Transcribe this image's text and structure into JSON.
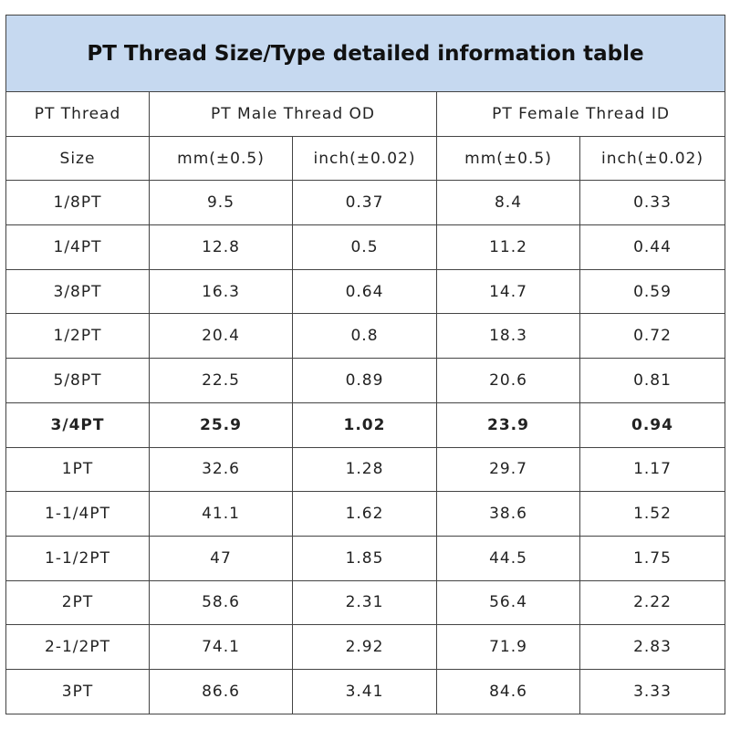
{
  "table": {
    "title": "PT Thread Size/Type detailed information table",
    "header": [
      [
        "PT Thread",
        "PT Male Thread OD",
        "PT Female Thread ID"
      ],
      [
        "Size",
        "mm(±0.5)",
        "inch(±0.02)",
        "mm(±0.5)",
        "inch(±0.02)"
      ]
    ],
    "rows": [
      [
        "1/8PT",
        "9.5",
        "0.37",
        "8.4",
        "0.33"
      ],
      [
        "1/4PT",
        "12.8",
        "0.5",
        "11.2",
        "0.44"
      ],
      [
        "3/8PT",
        "16.3",
        "0.64",
        "14.7",
        "0.59"
      ],
      [
        "1/2PT",
        "20.4",
        "0.8",
        "18.3",
        "0.72"
      ],
      [
        "5/8PT",
        "22.5",
        "0.89",
        "20.6",
        "0.81"
      ],
      [
        "3/4PT",
        "25.9",
        "1.02",
        "23.9",
        "0.94"
      ],
      [
        "1PT",
        "32.6",
        "1.28",
        "29.7",
        "1.17"
      ],
      [
        "1-1/4PT",
        "41.1",
        "1.62",
        "38.6",
        "1.52"
      ],
      [
        "1-1/2PT",
        "47",
        "1.85",
        "44.5",
        "1.75"
      ],
      [
        "2PT",
        "58.6",
        "2.31",
        "56.4",
        "2.22"
      ],
      [
        "2-1/2PT",
        "74.1",
        "2.92",
        "71.9",
        "2.83"
      ],
      [
        "3PT",
        "86.6",
        "3.41",
        "84.6",
        "3.33"
      ]
    ]
  }
}
